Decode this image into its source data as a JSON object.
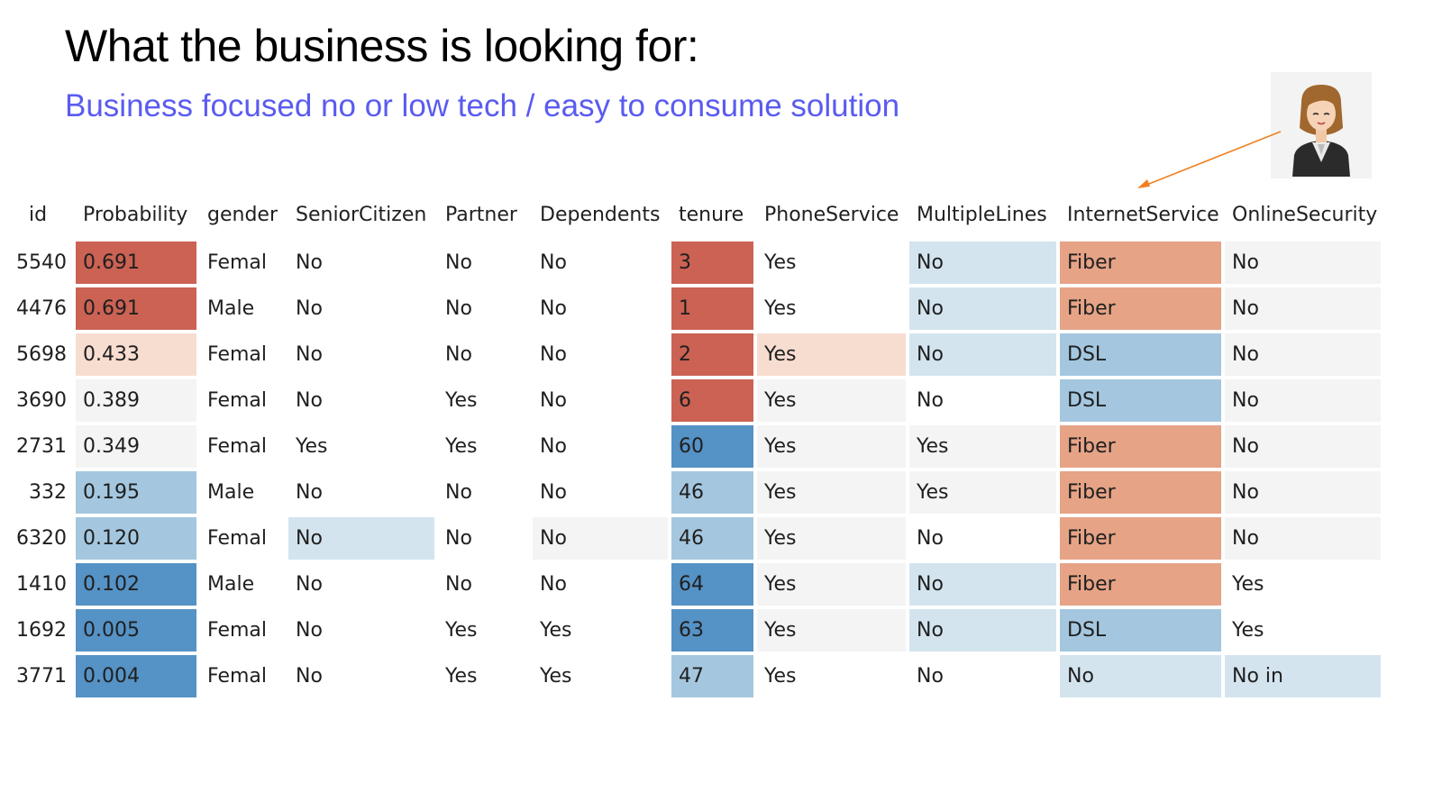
{
  "title": "What the business is looking for:",
  "subtitle": "Business focused no or low tech / easy to consume solution",
  "colors": {
    "accent": "#5a5bf0",
    "arrow": "#f08020",
    "scale": {
      "r": "#cb6253",
      "lr": "#f7ddd0",
      "or": "#e6a386",
      "g": "#f4f4f4",
      "lb": "#d3e4ef",
      "mb": "#a4c7df",
      "db": "#5592c5",
      "w": "transparent"
    }
  },
  "table": {
    "headers": [
      "id",
      "Probability",
      "gender",
      "SeniorCitizen",
      "Partner",
      "Dependents",
      "tenure",
      "PhoneService",
      "MultipleLines",
      "InternetService",
      "OnlineSecurity"
    ],
    "rows": [
      [
        "5540",
        "0.691",
        "Femal",
        "No",
        "No",
        "No",
        "3",
        "Yes",
        "No",
        "Fiber",
        "No"
      ],
      [
        "4476",
        "0.691",
        "Male",
        "No",
        "No",
        "No",
        "1",
        "Yes",
        "No",
        "Fiber",
        "No"
      ],
      [
        "5698",
        "0.433",
        "Femal",
        "No",
        "No",
        "No",
        "2",
        "Yes",
        "No",
        "DSL",
        "No"
      ],
      [
        "3690",
        "0.389",
        "Femal",
        "No",
        "Yes",
        "No",
        "6",
        "Yes",
        "No",
        "DSL",
        "No"
      ],
      [
        "2731",
        "0.349",
        "Femal",
        "Yes",
        "Yes",
        "No",
        "60",
        "Yes",
        "Yes",
        "Fiber",
        "No"
      ],
      [
        "332",
        "0.195",
        "Male",
        "No",
        "No",
        "No",
        "46",
        "Yes",
        "Yes",
        "Fiber",
        "No"
      ],
      [
        "6320",
        "0.120",
        "Femal",
        "No",
        "No",
        "No",
        "46",
        "Yes",
        "No",
        "Fiber",
        "No"
      ],
      [
        "1410",
        "0.102",
        "Male",
        "No",
        "No",
        "No",
        "64",
        "Yes",
        "No",
        "Fiber",
        "Yes"
      ],
      [
        "1692",
        "0.005",
        "Femal",
        "No",
        "Yes",
        "Yes",
        "63",
        "Yes",
        "No",
        "DSL",
        "Yes"
      ],
      [
        "3771",
        "0.004",
        "Femal",
        "No",
        "Yes",
        "Yes",
        "47",
        "Yes",
        "No",
        "No",
        "No in"
      ]
    ],
    "shading": [
      [
        "w",
        "r",
        "w",
        "w",
        "w",
        "w",
        "r",
        "w",
        "lb",
        "or",
        "g"
      ],
      [
        "w",
        "r",
        "w",
        "w",
        "w",
        "w",
        "r",
        "w",
        "lb",
        "or",
        "g"
      ],
      [
        "w",
        "lr",
        "w",
        "w",
        "w",
        "w",
        "r",
        "lr",
        "lb",
        "mb",
        "g"
      ],
      [
        "w",
        "g",
        "w",
        "w",
        "w",
        "w",
        "r",
        "g",
        "w",
        "mb",
        "g"
      ],
      [
        "w",
        "g",
        "w",
        "w",
        "w",
        "w",
        "db",
        "g",
        "g",
        "or",
        "g"
      ],
      [
        "w",
        "mb",
        "w",
        "w",
        "w",
        "w",
        "mb",
        "g",
        "g",
        "or",
        "g"
      ],
      [
        "w",
        "mb",
        "w",
        "lb",
        "w",
        "g",
        "mb",
        "g",
        "w",
        "or",
        "g"
      ],
      [
        "w",
        "db",
        "w",
        "w",
        "w",
        "w",
        "db",
        "g",
        "lb",
        "or",
        "w"
      ],
      [
        "w",
        "db",
        "w",
        "w",
        "w",
        "w",
        "db",
        "g",
        "lb",
        "mb",
        "w"
      ],
      [
        "w",
        "db",
        "w",
        "w",
        "w",
        "w",
        "mb",
        "w",
        "w",
        "lb",
        "lb"
      ]
    ]
  },
  "avatar": {
    "icon": "businesswoman-icon"
  }
}
